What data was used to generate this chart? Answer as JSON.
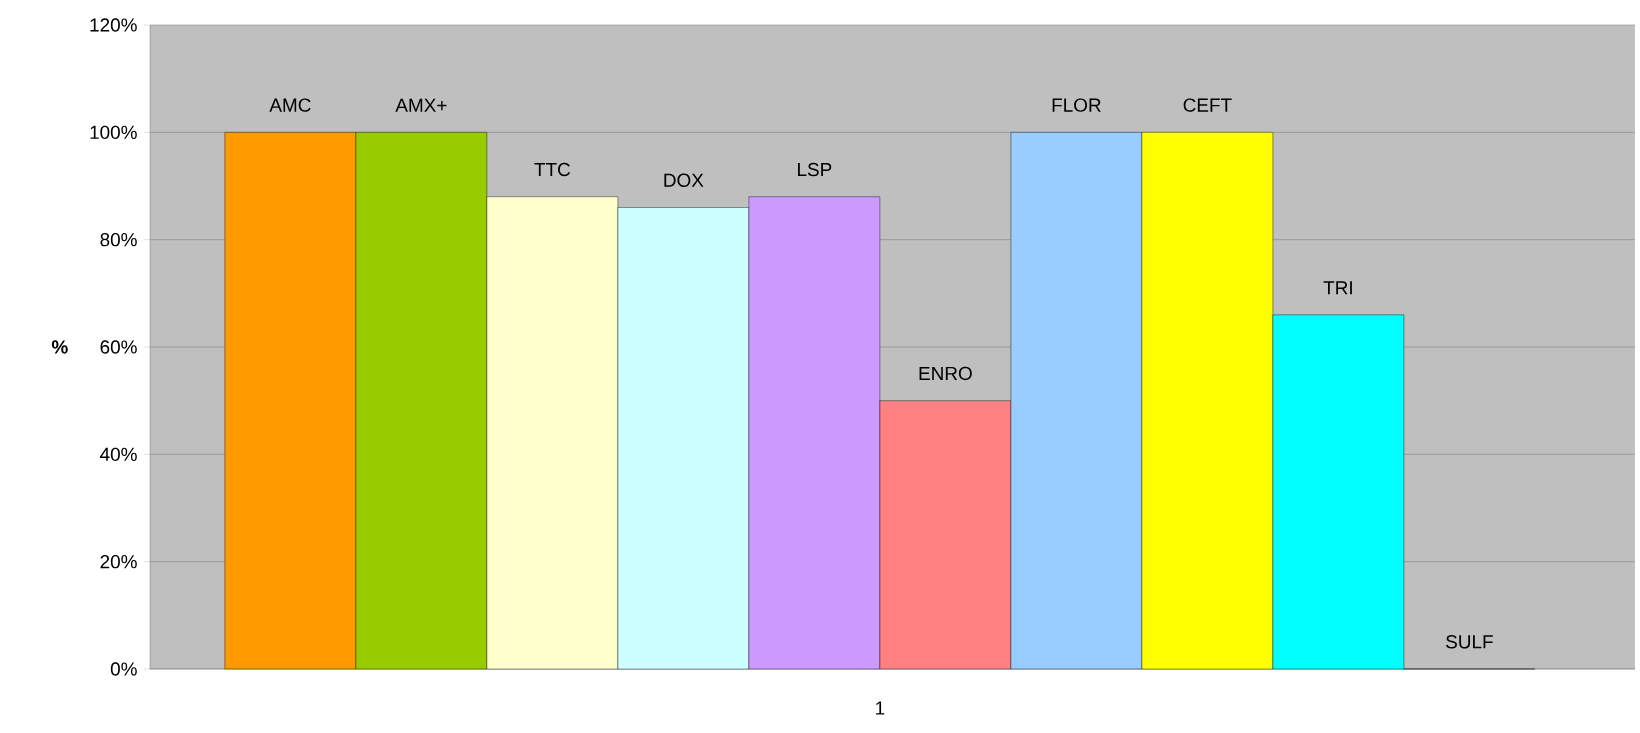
{
  "chart_data": {
    "type": "bar",
    "categories": [
      "1"
    ],
    "ylabel": "%",
    "ylim": [
      0,
      120
    ],
    "yticks": [
      {
        "value": 0,
        "label": "0%"
      },
      {
        "value": 20,
        "label": "20%"
      },
      {
        "value": 40,
        "label": "40%"
      },
      {
        "value": 60,
        "label": "60%"
      },
      {
        "value": 80,
        "label": "80%"
      },
      {
        "value": 100,
        "label": "100%"
      },
      {
        "value": 120,
        "label": "120%"
      }
    ],
    "grid": "y",
    "legend": false,
    "series": [
      {
        "name": "AMC",
        "color": "#ff9900",
        "values": [
          100
        ]
      },
      {
        "name": "AMX+",
        "color": "#99cc00",
        "values": [
          100
        ]
      },
      {
        "name": "TTC",
        "color": "#ffffcc",
        "values": [
          88
        ]
      },
      {
        "name": "DOX",
        "color": "#ccffff",
        "values": [
          86
        ]
      },
      {
        "name": "LSP",
        "color": "#cc99ff",
        "values": [
          88
        ]
      },
      {
        "name": "ENRO",
        "color": "#ff8080",
        "values": [
          50
        ]
      },
      {
        "name": "FLOR",
        "color": "#99ccff",
        "values": [
          100
        ]
      },
      {
        "name": "CEFT",
        "color": "#ffff00",
        "values": [
          100
        ]
      },
      {
        "name": "TRI",
        "color": "#00ffff",
        "values": [
          66
        ]
      },
      {
        "name": "SULF",
        "values": [
          0
        ]
      }
    ]
  }
}
